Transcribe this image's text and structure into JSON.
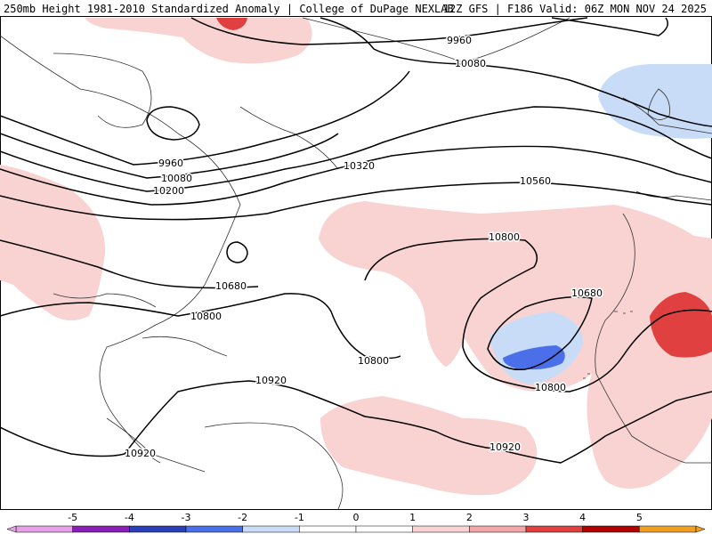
{
  "header": {
    "left": "250mb Height 1981-2010 Standardized Anomaly | College of DuPage NEXLAB",
    "right": "12Z GFS | F186 Valid: 06Z MON NOV 24 2025"
  },
  "colors": {
    "neg5": "#e6a0e6",
    "neg4": "#8a1fb8",
    "neg3": "#2a3fb8",
    "neg2": "#4a6fe8",
    "neg1": "#c8dcf8",
    "zero": "#ffffff",
    "pos1": "#f9d2d2",
    "pos2": "#f2a6a6",
    "pos3": "#e04040",
    "pos4": "#b00000",
    "pos5": "#f0a020",
    "land_outline": "#333333",
    "contour": "#000000"
  },
  "colorbar": {
    "labels": [
      "-5",
      "-4",
      "-3",
      "-2",
      "-1",
      "0",
      "1",
      "2",
      "3",
      "4",
      "5"
    ]
  },
  "contours": [
    {
      "label": "9960",
      "name": "contour-label-9960-north"
    },
    {
      "label": "10080",
      "name": "contour-label-10080-north"
    },
    {
      "label": "9960",
      "name": "contour-label-9960-west"
    },
    {
      "label": "10080",
      "name": "contour-label-10080-west"
    },
    {
      "label": "10200",
      "name": "contour-label-10200"
    },
    {
      "label": "10320",
      "name": "contour-label-10320"
    },
    {
      "label": "10560",
      "name": "contour-label-10560"
    },
    {
      "label": "10680",
      "name": "contour-label-10680-west"
    },
    {
      "label": "10800",
      "name": "contour-label-10800-west"
    },
    {
      "label": "10800",
      "name": "contour-label-10800-mid"
    },
    {
      "label": "10800",
      "name": "contour-label-10800-east"
    },
    {
      "label": "10680",
      "name": "contour-label-10680-east"
    },
    {
      "label": "10800",
      "name": "contour-label-10800-southeast"
    },
    {
      "label": "10920",
      "name": "contour-label-10920-west"
    },
    {
      "label": "10920",
      "name": "contour-label-10920-east"
    },
    {
      "label": "10920",
      "name": "contour-label-10920-south"
    }
  ]
}
